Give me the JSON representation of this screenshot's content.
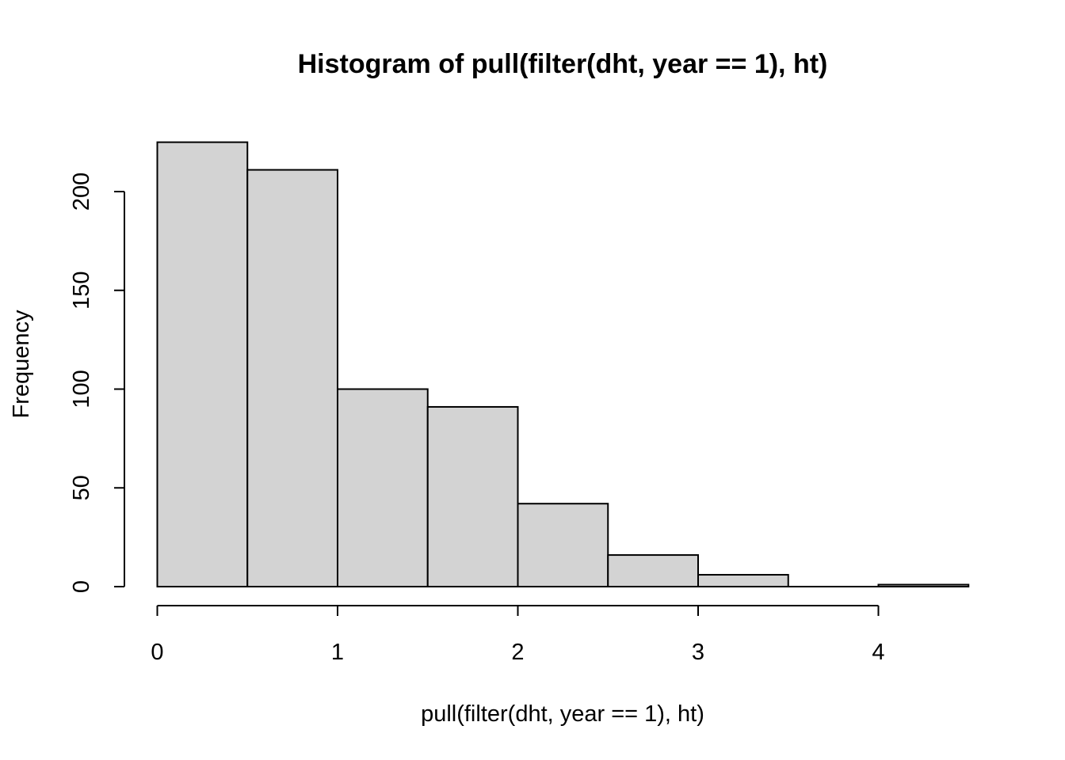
{
  "chart_data": {
    "type": "bar",
    "title": "Histogram of pull(filter(dht, year == 1), ht)",
    "xlabel": "pull(filter(dht, year == 1), ht)",
    "ylabel": "Frequency",
    "bins": [
      {
        "start": 0.0,
        "end": 0.5,
        "count": 225
      },
      {
        "start": 0.5,
        "end": 1.0,
        "count": 211
      },
      {
        "start": 1.0,
        "end": 1.5,
        "count": 100
      },
      {
        "start": 1.5,
        "end": 2.0,
        "count": 91
      },
      {
        "start": 2.0,
        "end": 2.5,
        "count": 42
      },
      {
        "start": 2.5,
        "end": 3.0,
        "count": 16
      },
      {
        "start": 3.0,
        "end": 3.5,
        "count": 6
      },
      {
        "start": 3.5,
        "end": 4.0,
        "count": 0
      },
      {
        "start": 4.0,
        "end": 4.5,
        "count": 1
      }
    ],
    "xticks": [
      0,
      1,
      2,
      3,
      4
    ],
    "xtick_labels": [
      "0",
      "1",
      "2",
      "3",
      "4"
    ],
    "yticks": [
      0,
      50,
      100,
      150,
      200
    ],
    "ytick_labels": [
      "0",
      "50",
      "100",
      "150",
      "200"
    ],
    "xlim": [
      0,
      4.5
    ],
    "ylim": [
      0,
      225
    ],
    "bar_fill": "#d3d3d3",
    "bar_stroke": "#000000",
    "grid": false
  }
}
